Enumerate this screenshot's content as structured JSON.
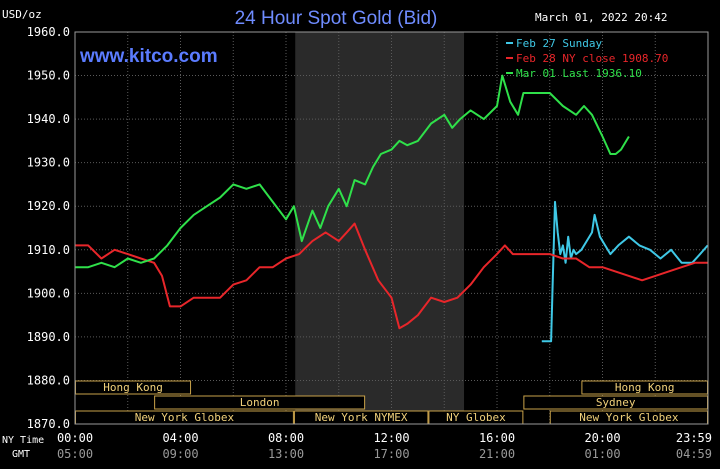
{
  "chart_data": {
    "type": "line",
    "title": "24 Hour Spot Gold (Bid)",
    "ylabel": "USD/oz",
    "watermark": "www.kitco.com",
    "timestamp": "March 01, 2022 20:42",
    "ylim": [
      1870,
      1960
    ],
    "yticks": [
      "1960.0",
      "1950.0",
      "1940.0",
      "1930.0",
      "1920.0",
      "1910.0",
      "1900.0",
      "1890.0",
      "1880.0",
      "1870.0"
    ],
    "x_row_labels": {
      "ny": "NY Time",
      "gmt": "GMT"
    },
    "xticks_ny": [
      "00:00",
      "04:00",
      "08:00",
      "12:00",
      "16:00",
      "20:00",
      "23:59"
    ],
    "xticks_gmt": [
      "05:00",
      "09:00",
      "13:00",
      "17:00",
      "21:00",
      "01:00",
      "04:59"
    ],
    "xlim_hours": [
      0,
      24
    ],
    "shaded_hours": [
      8.35,
      14.75
    ],
    "legend": [
      {
        "label": "Feb 27 Sunday",
        "color": "#3fc8e6"
      },
      {
        "label": "Feb 28 NY close 1908.70",
        "color": "#e8262a"
      },
      {
        "label": "Mar 01 Last 1936.10",
        "color": "#2fe04a"
      }
    ],
    "sessions": [
      {
        "label": "Hong Kong",
        "start": 0.0,
        "end": 4.4,
        "row": 1
      },
      {
        "label": "London",
        "start": 3.0,
        "end": 11.0,
        "row": 2
      },
      {
        "label": "New York Globex",
        "start": 0.0,
        "end": 8.3,
        "row": 3
      },
      {
        "label": "New York NYMEX",
        "start": 8.3,
        "end": 13.4,
        "row": 3
      },
      {
        "label": "NY Globex",
        "start": 13.4,
        "end": 17.0,
        "row": 3
      },
      {
        "label": "Hong Kong",
        "start": 19.2,
        "end": 24.0,
        "row": 1
      },
      {
        "label": "Sydney",
        "start": 17.0,
        "end": 24.0,
        "row": 2
      },
      {
        "label": "New York Globex",
        "start": 18.0,
        "end": 24.0,
        "row": 3
      }
    ],
    "series": [
      {
        "name": "Feb 27 Sunday",
        "color": "#3fc8e6",
        "x": [
          17.7,
          18.0,
          18.05,
          18.1,
          18.2,
          18.3,
          18.4,
          18.5,
          18.6,
          18.7,
          18.8,
          18.9,
          19.0,
          19.2,
          19.4,
          19.6,
          19.7,
          19.9,
          20.1,
          20.3,
          20.6,
          21.0,
          21.4,
          21.8,
          22.2,
          22.6,
          23.0,
          23.4,
          23.7,
          23.99
        ],
        "y": [
          1889,
          1889,
          1889,
          1900,
          1921,
          1914,
          1909,
          1911,
          1907,
          1913,
          1908,
          1910,
          1909,
          1910,
          1912,
          1914,
          1918,
          1913,
          1911,
          1909,
          1911,
          1913,
          1911,
          1910,
          1908,
          1910,
          1907,
          1907,
          1909,
          1911
        ]
      },
      {
        "name": "Feb 28 NY close 1908.70",
        "color": "#e8262a",
        "x": [
          0.0,
          0.5,
          1.0,
          1.5,
          2.0,
          2.5,
          3.0,
          3.3,
          3.6,
          4.0,
          4.5,
          5.0,
          5.5,
          6.0,
          6.5,
          7.0,
          7.5,
          8.0,
          8.5,
          9.0,
          9.5,
          10.0,
          10.3,
          10.6,
          11.0,
          11.5,
          12.0,
          12.3,
          12.6,
          13.0,
          13.5,
          14.0,
          14.5,
          15.0,
          15.5,
          16.0,
          16.3,
          16.6,
          17.0,
          17.5,
          18.0,
          18.5,
          19.0,
          19.5,
          20.0,
          20.5,
          21.0,
          21.5,
          22.0,
          22.5,
          23.0,
          23.5,
          23.99
        ],
        "y": [
          1911,
          1911,
          1908,
          1910,
          1909,
          1908,
          1907,
          1904,
          1897,
          1897,
          1899,
          1899,
          1899,
          1902,
          1903,
          1906,
          1906,
          1908,
          1909,
          1912,
          1914,
          1912,
          1914,
          1916,
          1910,
          1903,
          1899,
          1892,
          1893,
          1895,
          1899,
          1898,
          1899,
          1902,
          1906,
          1909,
          1911,
          1909,
          1909,
          1909,
          1909,
          1908,
          1908,
          1906,
          1906,
          1905,
          1904,
          1903,
          1904,
          1905,
          1906,
          1907,
          1907
        ]
      },
      {
        "name": "Mar 01 Last 1936.10",
        "color": "#2fe04a",
        "x": [
          0.0,
          0.5,
          1.0,
          1.5,
          2.0,
          2.5,
          3.0,
          3.5,
          4.0,
          4.5,
          5.0,
          5.5,
          6.0,
          6.5,
          7.0,
          7.5,
          8.0,
          8.3,
          8.6,
          9.0,
          9.3,
          9.6,
          10.0,
          10.3,
          10.6,
          11.0,
          11.3,
          11.6,
          12.0,
          12.3,
          12.6,
          13.0,
          13.5,
          14.0,
          14.3,
          14.6,
          15.0,
          15.5,
          16.0,
          16.2,
          16.5,
          16.8,
          17.0,
          17.5,
          18.0,
          18.5,
          19.0,
          19.3,
          19.6,
          20.0,
          20.3,
          20.5,
          20.7,
          21.0
        ],
        "y": [
          1906,
          1906,
          1907,
          1906,
          1908,
          1907,
          1908,
          1911,
          1915,
          1918,
          1920,
          1922,
          1925,
          1924,
          1925,
          1921,
          1917,
          1920,
          1912,
          1919,
          1915,
          1920,
          1924,
          1920,
          1926,
          1925,
          1929,
          1932,
          1933,
          1935,
          1934,
          1935,
          1939,
          1941,
          1938,
          1940,
          1942,
          1940,
          1943,
          1950,
          1944,
          1941,
          1946,
          1946,
          1946,
          1943,
          1941,
          1943,
          1941,
          1936,
          1932,
          1932,
          1933,
          1936
        ]
      }
    ]
  }
}
